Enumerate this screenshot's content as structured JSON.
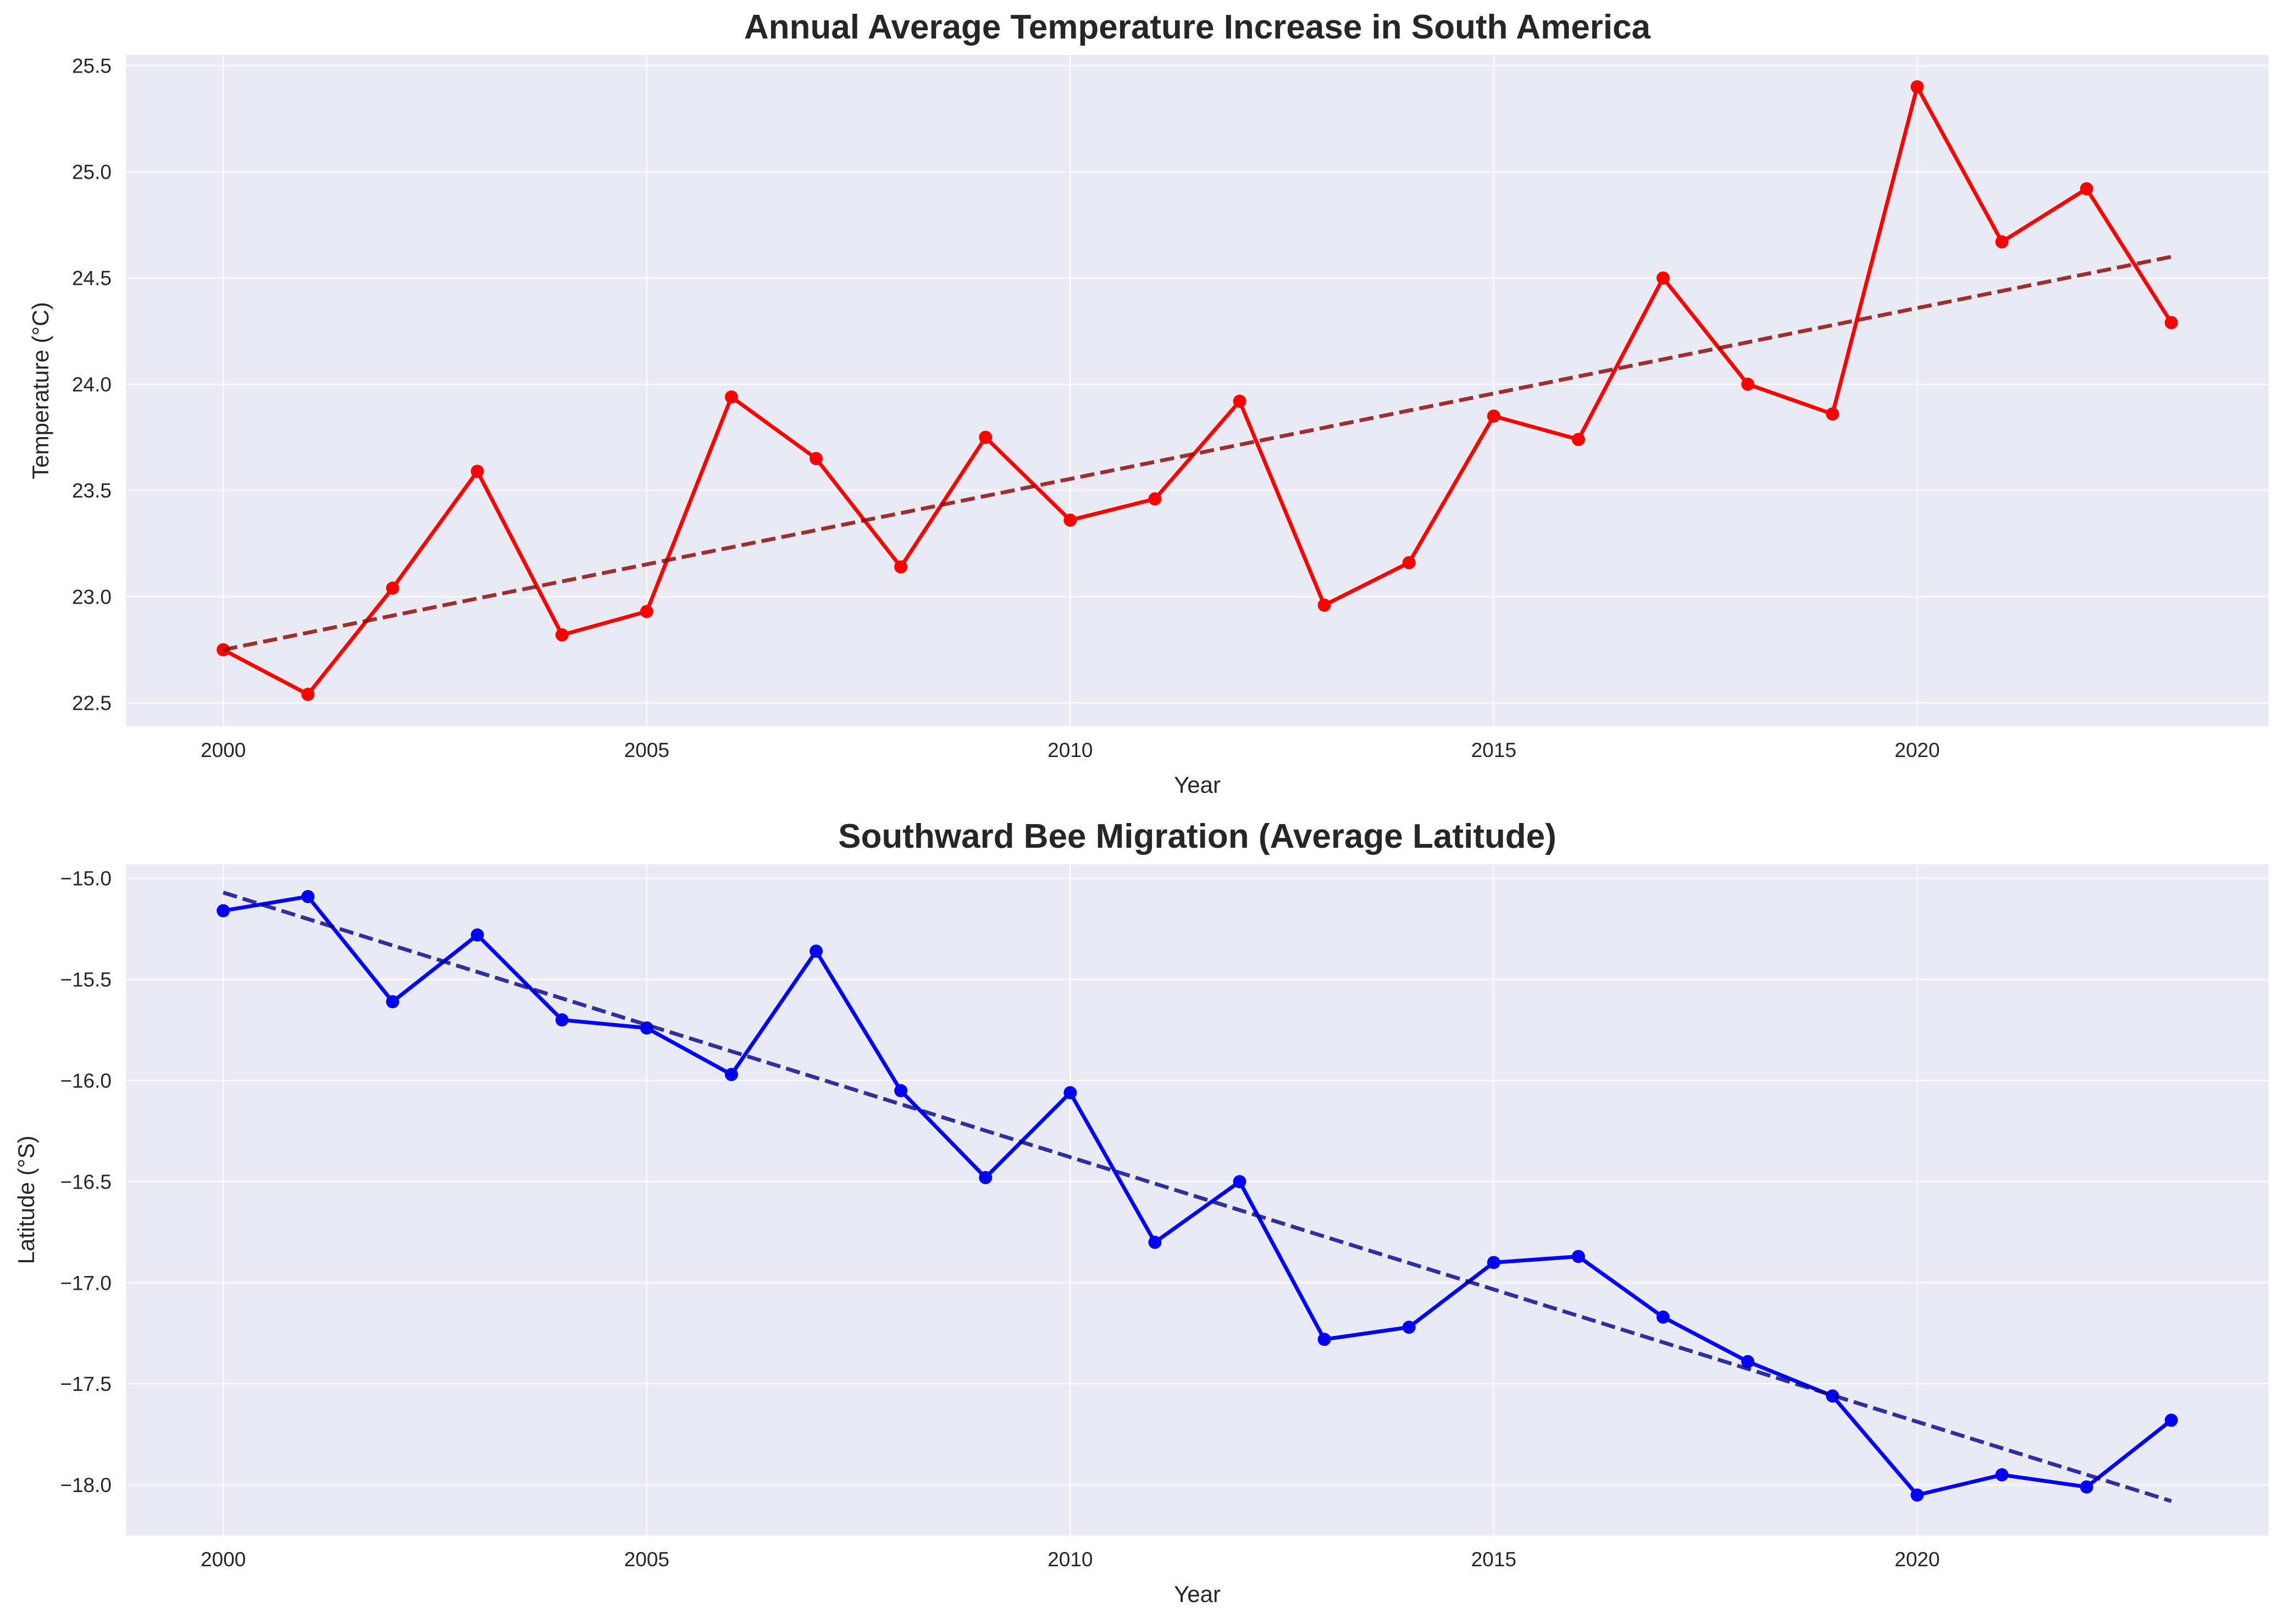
{
  "chart_data": [
    {
      "type": "line",
      "title": "Annual Average Temperature Increase in South America",
      "xlabel": "Year",
      "ylabel": "Temperature (°C)",
      "xlim": [
        1998.85,
        2024.15
      ],
      "ylim": [
        22.39,
        25.55
      ],
      "grid": true,
      "x_ticks": [
        2000,
        2005,
        2010,
        2015,
        2020
      ],
      "y_ticks": [
        22.5,
        23.0,
        23.5,
        24.0,
        24.5,
        25.0,
        25.5
      ],
      "y_tick_labels": [
        "22.5",
        "23.0",
        "23.5",
        "24.0",
        "24.5",
        "25.0",
        "25.5"
      ],
      "series": [
        {
          "style": "solid-with-markers",
          "color": "#ff0000",
          "x": [
            2000,
            2001,
            2002,
            2003,
            2004,
            2005,
            2006,
            2007,
            2008,
            2009,
            2010,
            2011,
            2012,
            2013,
            2014,
            2015,
            2016,
            2017,
            2018,
            2019,
            2020,
            2021,
            2022,
            2023
          ],
          "values": [
            22.75,
            22.54,
            23.04,
            23.59,
            22.82,
            22.93,
            23.94,
            23.65,
            23.14,
            23.75,
            23.36,
            23.46,
            23.92,
            22.96,
            23.16,
            23.85,
            23.74,
            24.5,
            24.0,
            23.86,
            25.4,
            24.67,
            24.92,
            24.29
          ]
        },
        {
          "style": "dashed-trend",
          "color": "#8b0000",
          "x": [
            2000,
            2023
          ],
          "values": [
            22.75,
            24.6
          ]
        }
      ]
    },
    {
      "type": "line",
      "title": "Southward Bee Migration (Average Latitude)",
      "xlabel": "Year",
      "ylabel": "Latitude (°S)",
      "xlim": [
        1998.85,
        2024.15
      ],
      "ylim": [
        -18.25,
        -14.93
      ],
      "grid": true,
      "x_ticks": [
        2000,
        2005,
        2010,
        2015,
        2020
      ],
      "y_ticks": [
        -18.0,
        -17.5,
        -17.0,
        -16.5,
        -16.0,
        -15.5,
        -15.0
      ],
      "y_tick_labels": [
        "−18.0",
        "−17.5",
        "−17.0",
        "−16.5",
        "−16.0",
        "−15.5",
        "−15.0"
      ],
      "series": [
        {
          "style": "solid-with-markers",
          "color": "#0000ff",
          "x": [
            2000,
            2001,
            2002,
            2003,
            2004,
            2005,
            2006,
            2007,
            2008,
            2009,
            2010,
            2011,
            2012,
            2013,
            2014,
            2015,
            2016,
            2017,
            2018,
            2019,
            2020,
            2021,
            2022,
            2023
          ],
          "values": [
            -15.16,
            -15.09,
            -15.61,
            -15.28,
            -15.7,
            -15.74,
            -15.97,
            -15.36,
            -16.05,
            -16.48,
            -16.06,
            -16.8,
            -16.5,
            -17.28,
            -17.22,
            -16.9,
            -16.87,
            -17.17,
            -17.39,
            -17.56,
            -18.05,
            -17.95,
            -18.01,
            -17.68
          ]
        },
        {
          "style": "dashed-trend",
          "color": "#00008b",
          "x": [
            2000,
            2023
          ],
          "values": [
            -15.07,
            -18.08
          ]
        }
      ]
    }
  ],
  "colors": {
    "axes_background": "#eaeaf2",
    "grid": "#ffffff",
    "figure_background": "#ffffff",
    "text": "#262626"
  }
}
